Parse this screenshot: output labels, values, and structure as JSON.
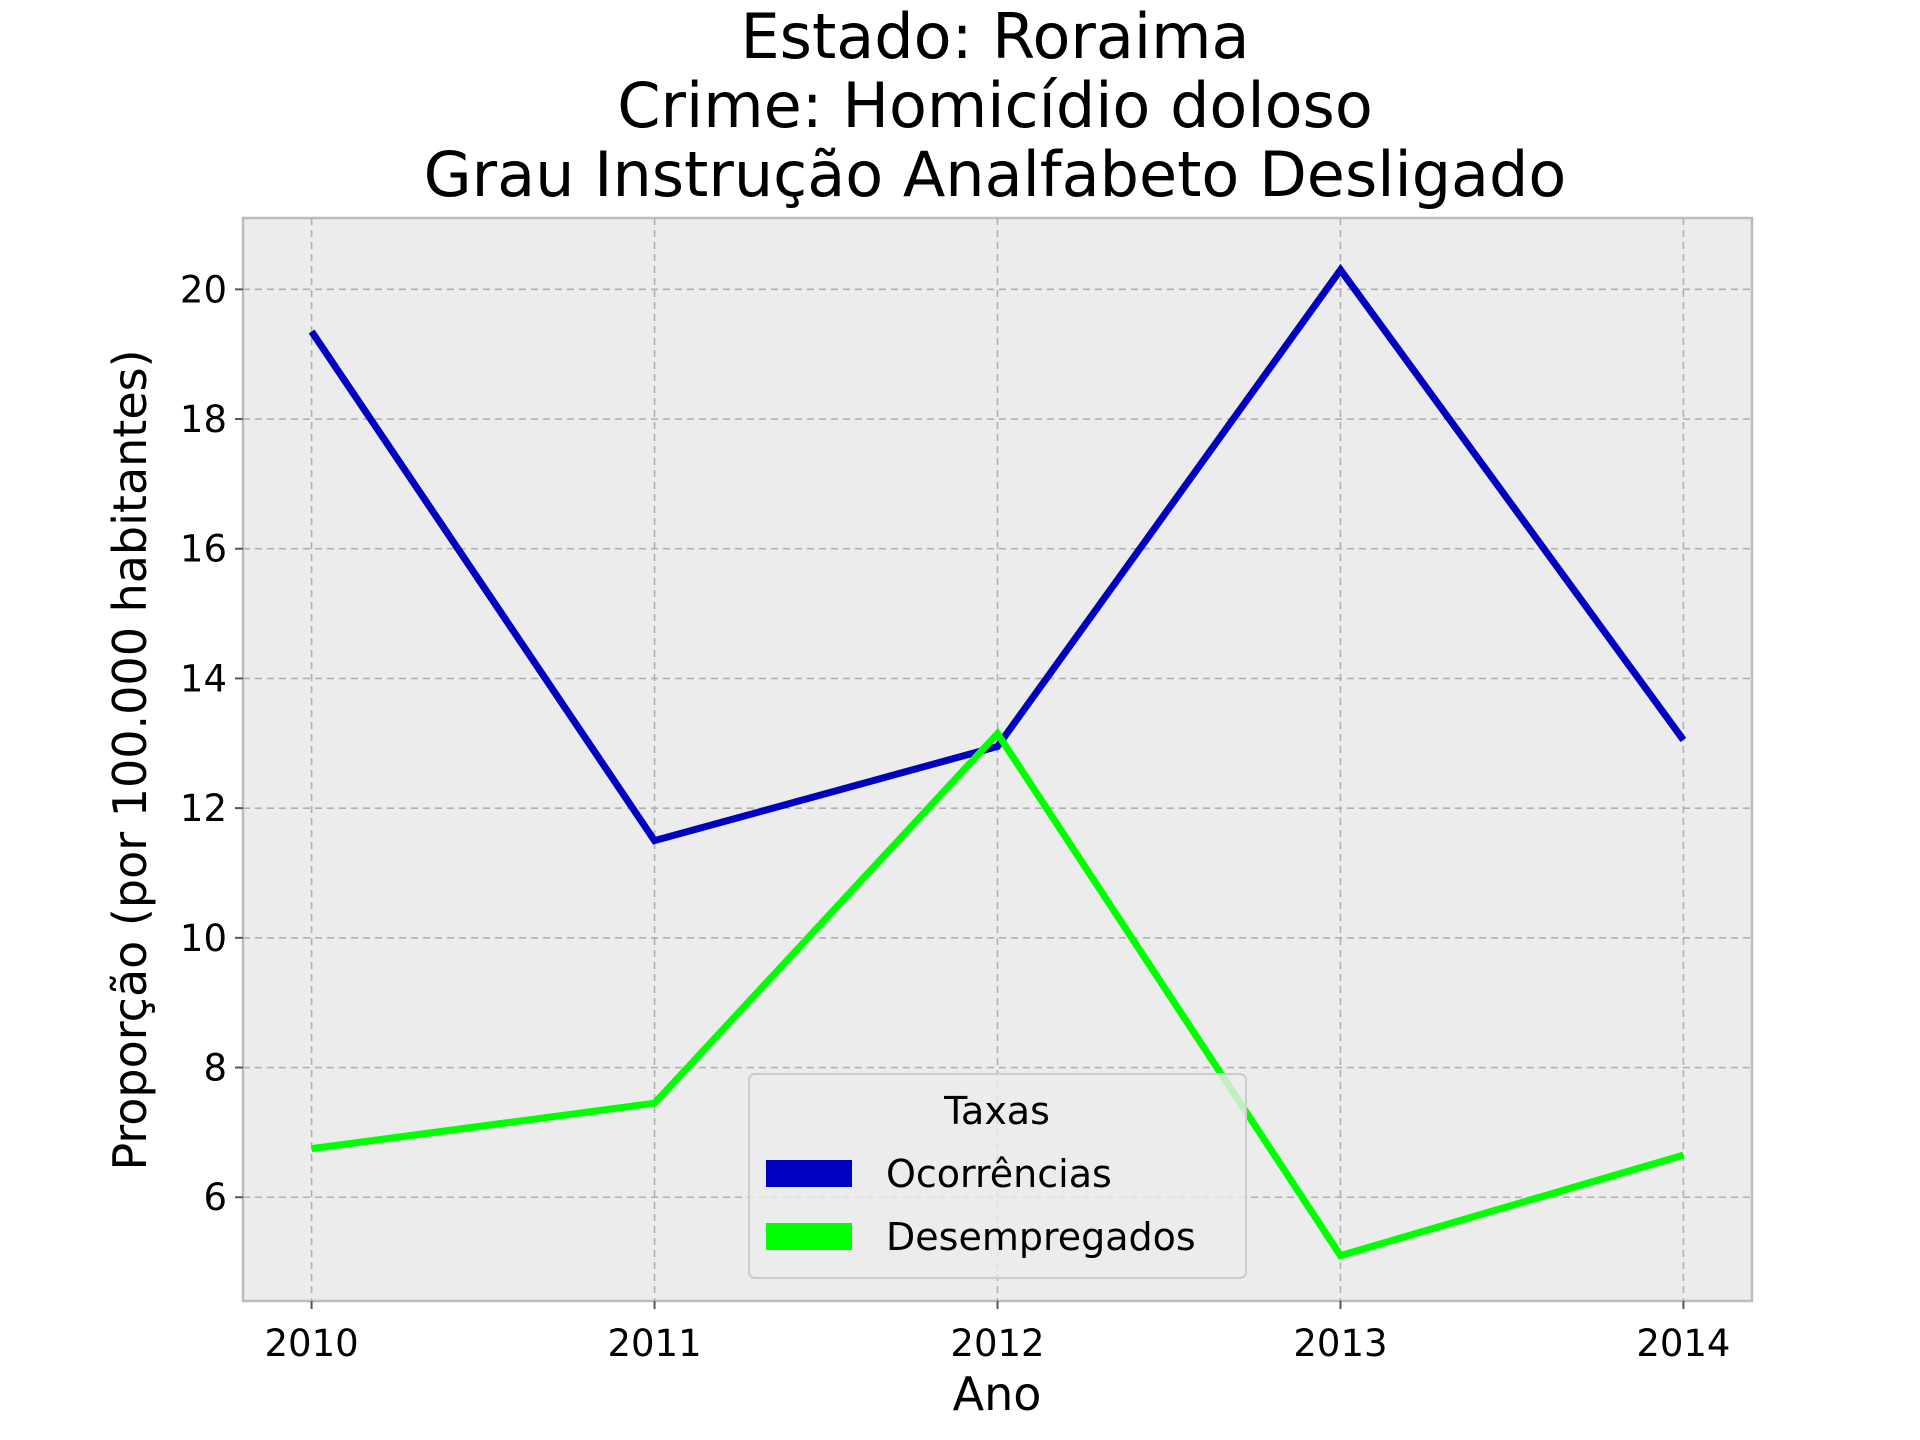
{
  "chart_data": {
    "type": "line",
    "title_lines": [
      "Estado: Roraima",
      "Crime: Homicídio doloso",
      "Grau Instrução  Analfabeto   Desligado"
    ],
    "xlabel": "Ano",
    "ylabel": "Proporção (por 100.000 habitantes)",
    "x": [
      2010,
      2011,
      2012,
      2013,
      2014
    ],
    "x_tick_labels": [
      "2010",
      "2011",
      "2012",
      "2013",
      "2014"
    ],
    "xlim": [
      2009.8,
      2014.2
    ],
    "ylim": [
      4.4,
      21.1
    ],
    "y_ticks": [
      6,
      8,
      10,
      12,
      14,
      16,
      18,
      20
    ],
    "y_tick_labels": [
      "6",
      "8",
      "10",
      "12",
      "14",
      "16",
      "18",
      "20"
    ],
    "grid": true,
    "legend": {
      "title": "Taxas",
      "placement": "lower-center"
    },
    "series": [
      {
        "name": "Ocorrências",
        "color": "#0000c0",
        "values": [
          19.35,
          11.5,
          12.95,
          20.3,
          13.05
        ]
      },
      {
        "name": "Desempregados",
        "color": "#00ff00",
        "values": [
          6.75,
          7.45,
          13.15,
          5.1,
          6.65
        ]
      }
    ]
  }
}
